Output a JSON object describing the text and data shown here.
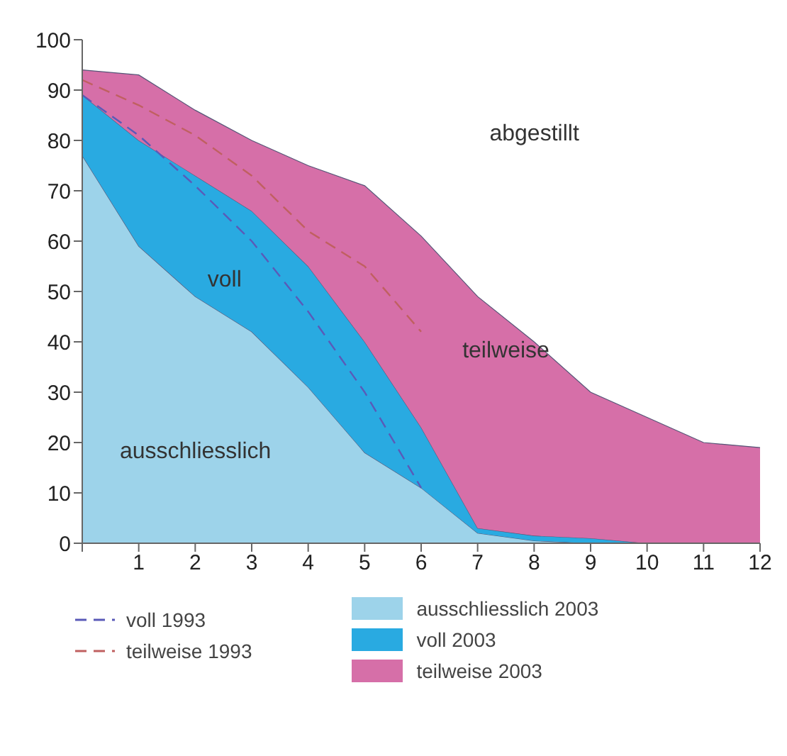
{
  "chart_data": {
    "type": "area",
    "stacked": true,
    "x": [
      0,
      1,
      2,
      3,
      4,
      5,
      6,
      7,
      8,
      9,
      10,
      11,
      12
    ],
    "xlim": [
      0,
      12
    ],
    "xticks": [
      {
        "value": 0,
        "label": null
      },
      1,
      2,
      3,
      4,
      5,
      6,
      7,
      8,
      9,
      10,
      11,
      12
    ],
    "ylim": [
      0,
      100
    ],
    "yticks": [
      0,
      10,
      20,
      30,
      40,
      50,
      60,
      70,
      80,
      90,
      100
    ],
    "series": [
      {
        "name": "ausschliesslich 2003",
        "color": "#9dd3ea",
        "values": [
          77,
          59,
          49,
          42,
          31,
          18,
          11,
          2,
          0.5,
          0,
          0,
          0,
          0
        ]
      },
      {
        "name": "voll 2003",
        "color": "#29aae1",
        "values": [
          12,
          21,
          24,
          24,
          24,
          22,
          12,
          1,
          1,
          1,
          0,
          0,
          0
        ]
      },
      {
        "name": "teilweise 2003",
        "color": "#d66fa8",
        "values": [
          5,
          13,
          13,
          14,
          20,
          31,
          38,
          46,
          38.5,
          29,
          25,
          20,
          19
        ]
      },
      {
        "name": "voll 1993",
        "type": "line",
        "color": "#5a5ab8",
        "values": [
          89,
          81,
          71,
          60,
          46,
          30,
          11,
          null,
          null,
          null,
          null,
          null,
          null
        ]
      },
      {
        "name": "teilweise 1993",
        "type": "line",
        "color": "#c06060",
        "values": [
          92,
          87,
          81,
          73,
          62,
          55,
          42,
          null,
          null,
          null,
          null,
          null,
          null
        ]
      }
    ],
    "line_style": "dashed",
    "grid": false,
    "legend": "bottom",
    "annotations": [
      "abgestillt",
      "voll",
      "teilweise",
      "ausschliesslich"
    ]
  }
}
